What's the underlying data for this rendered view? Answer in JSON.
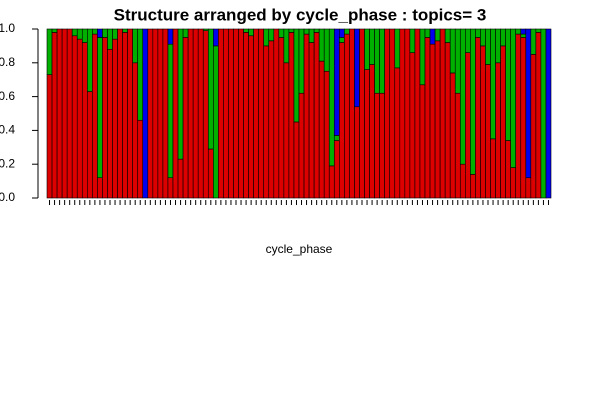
{
  "chart_data": {
    "type": "stacked_bar",
    "title": "Structure arranged by cycle_phase : topics= 3",
    "x_label": "cycle_phase",
    "ylim": [
      0,
      1
    ],
    "yticks": [
      {
        "value": 0,
        "label": "0.0"
      },
      0.2,
      0.4,
      0.6,
      0.8,
      {
        "value": 1,
        "label": "1.0"
      }
    ],
    "categories": [
      null,
      null,
      null,
      null,
      null,
      null,
      null,
      null,
      null,
      null,
      null,
      null,
      null,
      null,
      null,
      null,
      null,
      null,
      null,
      null,
      null,
      null,
      null,
      null,
      null,
      null,
      null,
      null,
      null,
      null,
      null,
      null,
      null,
      null,
      null,
      null,
      null,
      null,
      null,
      null,
      null,
      null,
      null,
      null,
      null,
      null,
      null,
      null,
      null,
      null,
      null,
      null,
      null,
      null,
      null,
      null,
      null,
      null,
      null,
      null,
      null,
      null,
      null,
      null,
      null,
      null,
      null,
      null,
      null,
      null,
      null,
      null,
      null,
      null,
      null,
      null,
      null,
      null,
      null,
      null,
      null,
      null,
      null,
      null,
      null,
      null,
      null,
      null,
      null,
      null,
      null,
      null,
      null,
      null,
      null,
      null,
      null,
      null,
      null,
      null
    ],
    "series": [
      {
        "color": "#dd0000",
        "values": [
          0.73,
          0.98,
          1,
          1,
          1,
          0.96,
          0.94,
          0.92,
          0.63,
          0.97,
          0.12,
          0.95,
          0.88,
          0.94,
          1,
          0.98,
          1,
          0.8,
          0.46,
          0,
          1,
          1,
          1,
          1,
          0.12,
          1,
          0.23,
          0.95,
          1,
          1,
          1,
          0.99,
          0.29,
          0,
          1,
          1,
          1,
          1,
          1,
          0.98,
          0.96,
          1,
          1,
          0.9,
          0.93,
          1,
          0.95,
          0.8,
          0.98,
          0.45,
          0.62,
          0.97,
          0.92,
          0.98,
          0.81,
          0.75,
          0.19,
          0.34,
          0.92,
          0.97,
          1,
          0.54,
          1,
          0.76,
          0.79,
          0.62,
          0.62,
          1,
          1,
          0.77,
          1,
          1,
          0.86,
          1,
          0.67,
          0.95,
          0.91,
          0.93,
          1,
          0.92,
          0.74,
          0.62,
          0.2,
          0.86,
          0.14,
          0.95,
          0.9,
          0.79,
          0.35,
          0.8,
          0.9,
          0.34,
          0.18,
          0.97,
          0.95,
          0.12,
          0.85,
          0.98,
          0,
          0
        ]
      },
      {
        "color": "#00b000",
        "values": [
          0.27,
          0.02,
          0,
          0,
          0,
          0.04,
          0.06,
          0.08,
          0.37,
          0.03,
          0.83,
          0.05,
          0.12,
          0.06,
          0,
          0.02,
          0,
          0.2,
          0.54,
          0,
          0,
          0,
          0,
          0,
          0.79,
          0,
          0.77,
          0.05,
          0,
          0,
          0,
          0.01,
          0.71,
          0.9,
          0,
          0,
          0,
          0,
          0,
          0.02,
          0.04,
          0,
          0,
          0.1,
          0.07,
          0,
          0.05,
          0.2,
          0.02,
          0.55,
          0.38,
          0.03,
          0.08,
          0.02,
          0.19,
          0.25,
          0.81,
          0.03,
          0.03,
          0.03,
          0,
          0,
          0,
          0.24,
          0.21,
          0.38,
          0.38,
          0,
          0,
          0.23,
          0,
          0,
          0.14,
          0,
          0.33,
          0.05,
          0,
          0.07,
          0,
          0.08,
          0.26,
          0.38,
          0.8,
          0.14,
          0.86,
          0.05,
          0.1,
          0.21,
          0.65,
          0.2,
          0.1,
          0.66,
          0.82,
          0.03,
          0.02,
          0,
          0.15,
          0.02,
          1,
          0
        ]
      },
      {
        "color": "#0000ee",
        "values": [
          0,
          0,
          0,
          0,
          0,
          0,
          0,
          0,
          0,
          0,
          0.05,
          0,
          0,
          0,
          0,
          0,
          0,
          0,
          0,
          1,
          0,
          0,
          0,
          0,
          0.09,
          0,
          0,
          0,
          0,
          0,
          0,
          0,
          0,
          0.1,
          0,
          0,
          0,
          0,
          0,
          0,
          0,
          0,
          0,
          0,
          0,
          0,
          0,
          0,
          0,
          0,
          0,
          0,
          0,
          0,
          0,
          0,
          0,
          0.63,
          0.05,
          0,
          0,
          0.46,
          0,
          0,
          0,
          0,
          0,
          0,
          0,
          0,
          0,
          0,
          0,
          0,
          0,
          0,
          0.09,
          0,
          0,
          0,
          0,
          0,
          0,
          0,
          0,
          0,
          0,
          0,
          0,
          0,
          0,
          0,
          0,
          0,
          0.03,
          0.88,
          0,
          0,
          0,
          1
        ]
      }
    ]
  }
}
